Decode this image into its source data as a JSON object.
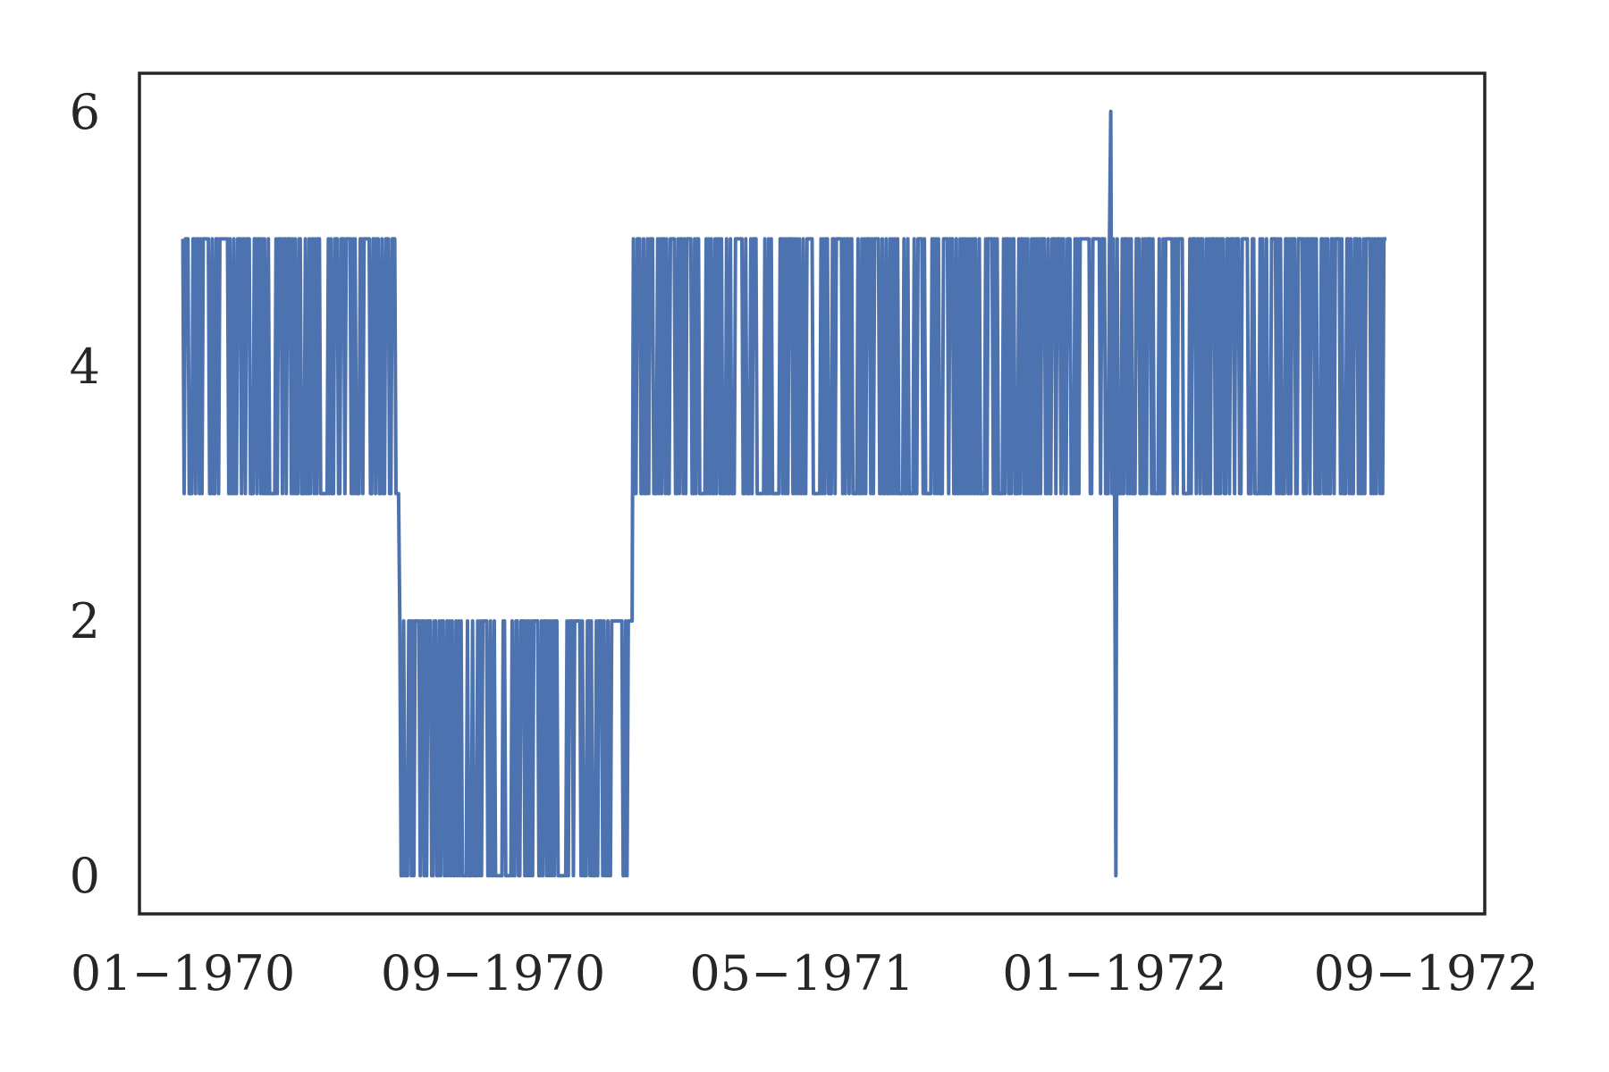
{
  "chart_data": {
    "type": "line",
    "title": "",
    "xlabel": "",
    "ylabel": "",
    "grid": false,
    "legend": "none",
    "line_color": "#4c72b0",
    "frame_color": "#262626",
    "xlim": [
      "1969-11-28",
      "1972-10-17"
    ],
    "ylim": [
      -0.3,
      6.3
    ],
    "x_ticks": [
      {
        "date": "1970-01-01",
        "label": "01−1970"
      },
      {
        "date": "1970-09-01",
        "label": "09−1970"
      },
      {
        "date": "1971-05-01",
        "label": "05−1971"
      },
      {
        "date": "1972-01-01",
        "label": "01−1972"
      },
      {
        "date": "1972-09-01",
        "label": "09−1972"
      }
    ],
    "y_ticks": [
      {
        "value": 0,
        "label": "0"
      },
      {
        "value": 2,
        "label": "2"
      },
      {
        "value": 4,
        "label": "4"
      },
      {
        "value": 6,
        "label": "6"
      }
    ],
    "series": [
      {
        "x_start": "1970-01-01",
        "x_end": "1972-08-01",
        "regimes": [
          {
            "from": "1970-01-01",
            "to": "1970-06-20",
            "low": 3,
            "high": 5
          },
          {
            "from": "1970-06-20",
            "to": "1970-12-20",
            "low": 0,
            "high": 2
          },
          {
            "from": "1970-12-20",
            "to": "1971-12-25",
            "low": 3,
            "high": 5
          },
          {
            "from": "1971-12-25",
            "to": "1972-08-01",
            "low": 3,
            "high": 5
          }
        ],
        "outliers": [
          {
            "date": "1971-12-29",
            "value": 6
          },
          {
            "date": "1972-01-02",
            "value": 0
          }
        ]
      }
    ]
  }
}
